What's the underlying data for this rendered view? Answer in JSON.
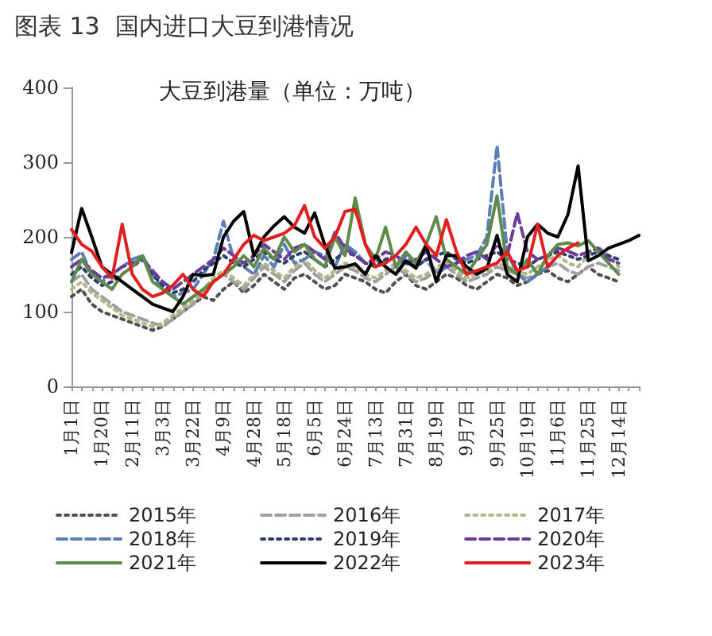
{
  "chart_data": {
    "type": "line",
    "title": "图表 13  国内进口大豆到港情况",
    "subtitle": "大豆到港量（单位：万吨）",
    "categories": [
      "1月1日",
      null,
      null,
      "1月20日",
      null,
      null,
      "2月11日",
      null,
      null,
      "3月3日",
      null,
      null,
      "3月22日",
      null,
      null,
      "4月9日",
      null,
      null,
      "4月28日",
      null,
      null,
      "5月18日",
      null,
      null,
      "6月5日",
      null,
      null,
      "6月24日",
      null,
      null,
      "7月13日",
      null,
      null,
      "7月31日",
      null,
      null,
      "8月19日",
      null,
      null,
      "9月7日",
      null,
      null,
      "9月25日",
      null,
      null,
      "10月19日",
      null,
      null,
      "11月6日",
      null,
      null,
      "11月25日",
      null,
      null,
      "12月14日",
      null,
      null
    ],
    "series": [
      {
        "name": "2015年",
        "color": "#505050",
        "line_style": "dotted",
        "values": [
          120,
          130,
          110,
          100,
          95,
          90,
          85,
          80,
          75,
          80,
          90,
          100,
          110,
          120,
          115,
          130,
          140,
          125,
          135,
          150,
          140,
          130,
          145,
          150,
          140,
          130,
          135,
          150,
          145,
          140,
          130,
          125,
          140,
          150,
          135,
          130,
          140,
          150,
          145,
          135,
          130,
          140,
          150,
          145,
          135,
          140,
          150,
          155,
          145,
          140,
          150,
          160,
          150,
          145,
          140,
          null,
          null
        ]
      },
      {
        "name": "2016年",
        "color": "#a0a0a0",
        "line_style": "dashed",
        "values": [
          140,
          150,
          130,
          120,
          110,
          100,
          95,
          90,
          85,
          80,
          90,
          100,
          110,
          125,
          140,
          150,
          140,
          130,
          145,
          160,
          150,
          140,
          155,
          165,
          150,
          140,
          150,
          160,
          155,
          145,
          140,
          150,
          160,
          150,
          140,
          145,
          155,
          160,
          150,
          140,
          145,
          150,
          160,
          155,
          150,
          145,
          150,
          160,
          165,
          155,
          150,
          160,
          165,
          160,
          155,
          null,
          null
        ]
      },
      {
        "name": "2017年",
        "color": "#b5b58a",
        "line_style": "dotted",
        "values": [
          130,
          140,
          125,
          115,
          105,
          95,
          90,
          85,
          80,
          85,
          95,
          105,
          115,
          130,
          145,
          155,
          145,
          135,
          150,
          165,
          155,
          145,
          160,
          170,
          155,
          145,
          155,
          165,
          160,
          150,
          145,
          155,
          165,
          155,
          145,
          150,
          160,
          165,
          155,
          145,
          150,
          155,
          165,
          160,
          155,
          150,
          160,
          170,
          175,
          165,
          160,
          175,
          187,
          175,
          160,
          null,
          null
        ]
      },
      {
        "name": "2018年",
        "color": "#5b7fb5",
        "line_style": "dashed",
        "values": [
          170,
          180,
          150,
          140,
          150,
          160,
          170,
          175,
          150,
          130,
          120,
          125,
          130,
          150,
          170,
          221,
          170,
          160,
          150,
          175,
          160,
          190,
          165,
          170,
          180,
          175,
          160,
          190,
          180,
          165,
          170,
          160,
          150,
          175,
          160,
          170,
          150,
          160,
          165,
          170,
          175,
          200,
          322,
          180,
          150,
          140,
          150,
          160,
          null,
          null,
          null,
          null,
          null,
          null,
          null,
          null,
          null
        ]
      },
      {
        "name": "2019年",
        "color": "#2f3e6b",
        "line_style": "dotted",
        "values": [
          150,
          160,
          145,
          135,
          140,
          150,
          160,
          170,
          150,
          135,
          125,
          130,
          140,
          155,
          165,
          175,
          165,
          160,
          170,
          180,
          170,
          165,
          175,
          180,
          170,
          160,
          170,
          180,
          175,
          165,
          160,
          170,
          175,
          165,
          160,
          170,
          175,
          180,
          170,
          165,
          170,
          175,
          180,
          170,
          165,
          160,
          170,
          175,
          180,
          175,
          170,
          175,
          180,
          175,
          170,
          null,
          null
        ]
      },
      {
        "name": "2020年",
        "color": "#6a3d9a",
        "line_style": "dashed",
        "values": [
          160,
          170,
          155,
          145,
          150,
          160,
          165,
          170,
          155,
          140,
          130,
          140,
          150,
          160,
          170,
          185,
          175,
          165,
          175,
          190,
          180,
          170,
          185,
          190,
          180,
          170,
          206,
          185,
          175,
          165,
          170,
          180,
          175,
          165,
          170,
          180,
          170,
          160,
          165,
          175,
          180,
          170,
          190,
          175,
          232,
          180,
          170,
          175,
          185,
          181,
          175,
          180,
          185,
          170,
          165,
          null,
          null
        ]
      },
      {
        "name": "2021年",
        "color": "#5f8a4a",
        "line_style": "solid",
        "values": [
          140,
          170,
          150,
          140,
          130,
          150,
          160,
          175,
          140,
          130,
          120,
          110,
          120,
          130,
          140,
          150,
          160,
          175,
          160,
          185,
          170,
          200,
          180,
          190,
          170,
          160,
          200,
          175,
          252,
          190,
          170,
          213,
          160,
          180,
          165,
          190,
          227,
          170,
          160,
          150,
          170,
          190,
          255,
          160,
          150,
          170,
          150,
          175,
          190,
          192,
          188,
          195,
          180,
          165,
          150,
          null,
          null
        ]
      },
      {
        "name": "2022年",
        "color": "#000000",
        "line_style": "solid",
        "values": [
          179,
          238,
          200,
          160,
          150,
          140,
          130,
          120,
          110,
          105,
          100,
          120,
          150,
          148,
          150,
          200,
          221,
          234,
          175,
          200,
          215,
          227,
          213,
          205,
          232,
          189,
          158,
          160,
          164,
          150,
          175,
          160,
          150,
          168,
          158,
          189,
          140,
          175,
          175,
          160,
          150,
          158,
          202,
          150,
          140,
          200,
          217,
          205,
          200,
          230,
          295,
          168,
          175,
          185,
          190,
          195,
          202
        ]
      },
      {
        "name": "2023年",
        "color": "#e02020",
        "line_style": "solid",
        "values": [
          210,
          190,
          181,
          160,
          145,
          217,
          150,
          130,
          120,
          125,
          135,
          150,
          130,
          120,
          140,
          150,
          170,
          190,
          202,
          195,
          200,
          205,
          215,
          242,
          200,
          185,
          200,
          234,
          237,
          190,
          160,
          165,
          175,
          190,
          213,
          190,
          175,
          223,
          180,
          150,
          155,
          160,
          165,
          180,
          155,
          160,
          217,
          160,
          175,
          185,
          192,
          null,
          null,
          null,
          null,
          null,
          null
        ]
      }
    ],
    "ylim": [
      0,
      400
    ],
    "yticks": [
      0,
      100,
      200,
      300,
      400
    ],
    "grid": false,
    "legend": "bottom",
    "marker": "none"
  }
}
